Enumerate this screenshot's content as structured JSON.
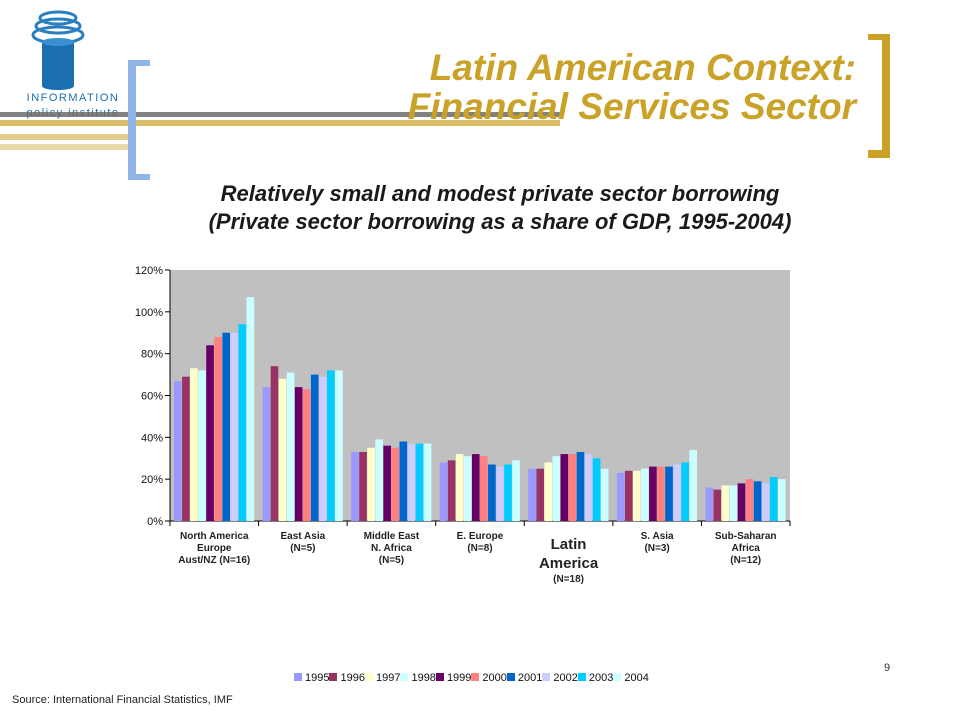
{
  "logo": {
    "line1": "INFORMATION",
    "line2": "policy institute"
  },
  "title": {
    "line1": "Latin American Context:",
    "line2": "Financial Services Sector"
  },
  "subtitle": {
    "line1": "Relatively small and modest private sector borrowing",
    "line2": "(Private sector borrowing as a share of GDP, 1995-2004)"
  },
  "page_number": "9",
  "source": "Source: International  Financial Statistics, IMF",
  "chart_data": {
    "type": "bar",
    "categories": [
      {
        "label": "North America\nEurope\nAust/NZ (N=16)",
        "emphasis": false
      },
      {
        "label": "East Asia\n(N=5)",
        "emphasis": false
      },
      {
        "label": "Middle East\nN. Africa\n(N=5)",
        "emphasis": false
      },
      {
        "label": "E. Europe\n(N=8)",
        "emphasis": false
      },
      {
        "label": "Latin\nAmerica",
        "note": "(N=18)",
        "emphasis": true
      },
      {
        "label": "S. Asia\n(N=3)",
        "emphasis": false
      },
      {
        "label": "Sub-Saharan\nAfrica\n(N=12)",
        "emphasis": false
      }
    ],
    "ylim": [
      0,
      120
    ],
    "yticks": [
      0,
      20,
      40,
      60,
      80,
      100,
      120
    ],
    "ytick_labels": [
      "0%",
      "20%",
      "40%",
      "60%",
      "80%",
      "100%",
      "120%"
    ],
    "plot_background": "#C0C0C0",
    "series": [
      {
        "name": "1995",
        "color": "#9999FF",
        "values": [
          67,
          64,
          33,
          28,
          25,
          23,
          16
        ]
      },
      {
        "name": "1996",
        "color": "#993366",
        "values": [
          69,
          74,
          33,
          29,
          25,
          24,
          15
        ]
      },
      {
        "name": "1997",
        "color": "#FFFFCC",
        "values": [
          73,
          68,
          35,
          32,
          28,
          24,
          17
        ]
      },
      {
        "name": "1998",
        "color": "#CCFFFF",
        "values": [
          72,
          71,
          39,
          31,
          31,
          25,
          17
        ]
      },
      {
        "name": "1999",
        "color": "#660066",
        "values": [
          84,
          64,
          36,
          32,
          32,
          26,
          18
        ]
      },
      {
        "name": "2000",
        "color": "#FF8080",
        "values": [
          88,
          63,
          35,
          31,
          32,
          26,
          20
        ]
      },
      {
        "name": "2001",
        "color": "#0066CC",
        "values": [
          90,
          70,
          38,
          27,
          33,
          26,
          19
        ]
      },
      {
        "name": "2002",
        "color": "#CCCCFF",
        "values": [
          90,
          69,
          37,
          26,
          32,
          27,
          18
        ]
      },
      {
        "name": "2003",
        "color": "#00CCFF",
        "values": [
          94,
          72,
          37,
          27,
          30,
          28,
          21
        ]
      },
      {
        "name": "2004",
        "color": "#CCFFFF",
        "values": [
          107,
          72,
          37,
          29,
          25,
          34,
          20
        ]
      }
    ],
    "legend_position": "bottom"
  }
}
